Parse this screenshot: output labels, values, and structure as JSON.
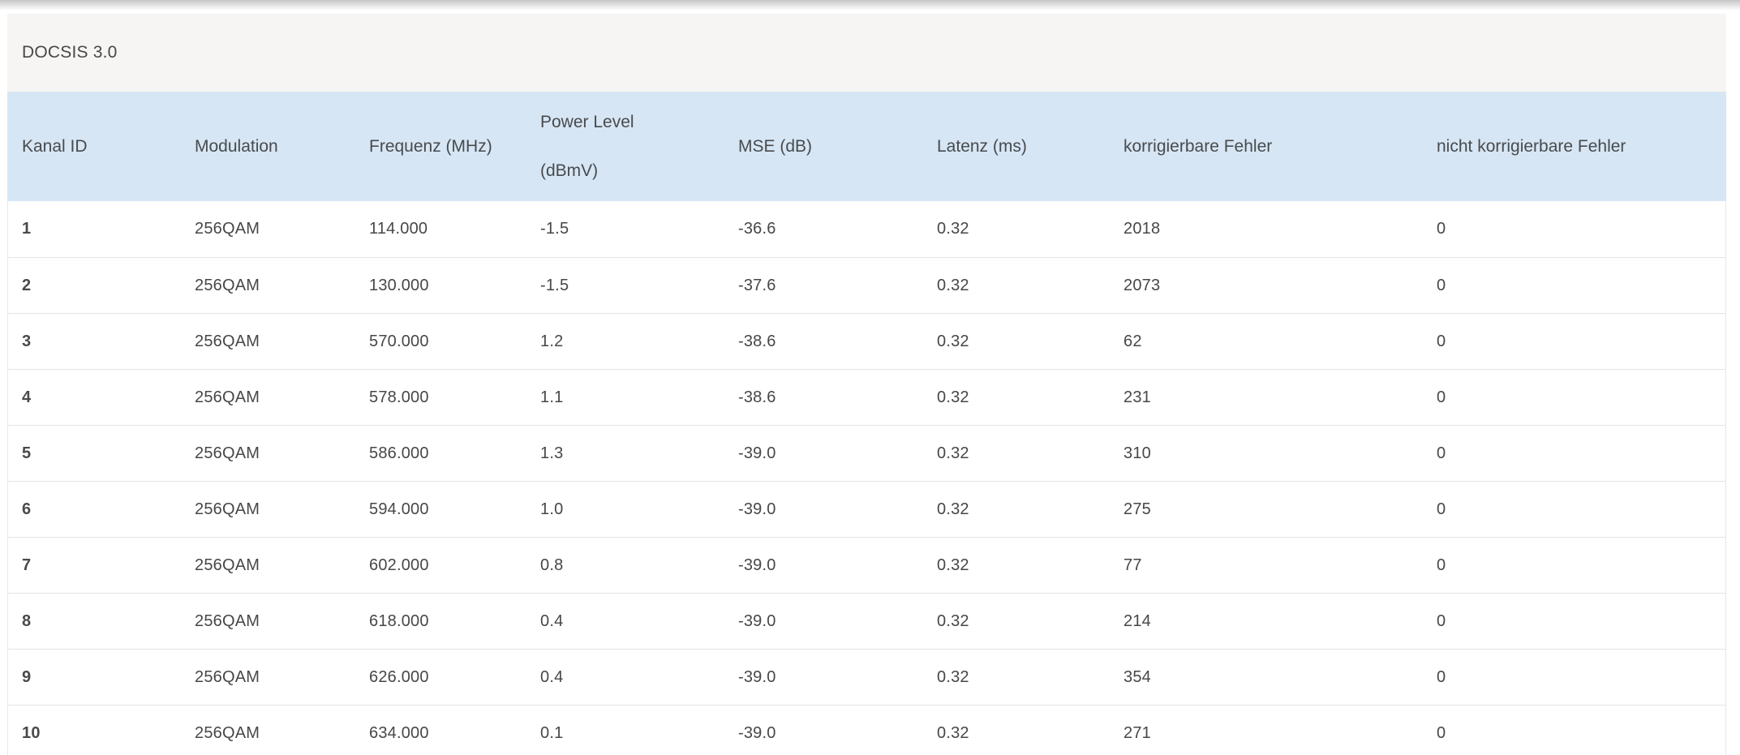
{
  "panel": {
    "title": "DOCSIS 3.0"
  },
  "colors": {
    "header_bg": "#d7e6f4",
    "panel_bg": "#f6f5f3",
    "text": "#474747",
    "row_border": "#e4e4e4",
    "top_shadow": "#c6c6c6"
  },
  "table": {
    "columns": [
      {
        "key": "channel",
        "label": "Kanal ID"
      },
      {
        "key": "modulation",
        "label": "Modulation"
      },
      {
        "key": "frequency",
        "label": "Frequenz (MHz)"
      },
      {
        "key": "power_level",
        "label": "Power Level\n(dBmV)"
      },
      {
        "key": "mse",
        "label": "MSE (dB)"
      },
      {
        "key": "latency",
        "label": "Latenz (ms)"
      },
      {
        "key": "correctable_errors",
        "label": "korrigierbare Fehler"
      },
      {
        "key": "uncorrectable_errors",
        "label": "nicht korrigierbare Fehler"
      }
    ],
    "rows": [
      {
        "channel": "1",
        "modulation": "256QAM",
        "frequency": "114.000",
        "power_level": "-1.5",
        "mse": "-36.6",
        "latency": "0.32",
        "correctable_errors": "2018",
        "uncorrectable_errors": "0"
      },
      {
        "channel": "2",
        "modulation": "256QAM",
        "frequency": "130.000",
        "power_level": "-1.5",
        "mse": "-37.6",
        "latency": "0.32",
        "correctable_errors": "2073",
        "uncorrectable_errors": "0"
      },
      {
        "channel": "3",
        "modulation": "256QAM",
        "frequency": "570.000",
        "power_level": "1.2",
        "mse": "-38.6",
        "latency": "0.32",
        "correctable_errors": "62",
        "uncorrectable_errors": "0"
      },
      {
        "channel": "4",
        "modulation": "256QAM",
        "frequency": "578.000",
        "power_level": "1.1",
        "mse": "-38.6",
        "latency": "0.32",
        "correctable_errors": "231",
        "uncorrectable_errors": "0"
      },
      {
        "channel": "5",
        "modulation": "256QAM",
        "frequency": "586.000",
        "power_level": "1.3",
        "mse": "-39.0",
        "latency": "0.32",
        "correctable_errors": "310",
        "uncorrectable_errors": "0"
      },
      {
        "channel": "6",
        "modulation": "256QAM",
        "frequency": "594.000",
        "power_level": "1.0",
        "mse": "-39.0",
        "latency": "0.32",
        "correctable_errors": "275",
        "uncorrectable_errors": "0"
      },
      {
        "channel": "7",
        "modulation": "256QAM",
        "frequency": "602.000",
        "power_level": "0.8",
        "mse": "-39.0",
        "latency": "0.32",
        "correctable_errors": "77",
        "uncorrectable_errors": "0"
      },
      {
        "channel": "8",
        "modulation": "256QAM",
        "frequency": "618.000",
        "power_level": "0.4",
        "mse": "-39.0",
        "latency": "0.32",
        "correctable_errors": "214",
        "uncorrectable_errors": "0"
      },
      {
        "channel": "9",
        "modulation": "256QAM",
        "frequency": "626.000",
        "power_level": "0.4",
        "mse": "-39.0",
        "latency": "0.32",
        "correctable_errors": "354",
        "uncorrectable_errors": "0"
      },
      {
        "channel": "10",
        "modulation": "256QAM",
        "frequency": "634.000",
        "power_level": "0.1",
        "mse": "-39.0",
        "latency": "0.32",
        "correctable_errors": "271",
        "uncorrectable_errors": "0"
      }
    ]
  }
}
